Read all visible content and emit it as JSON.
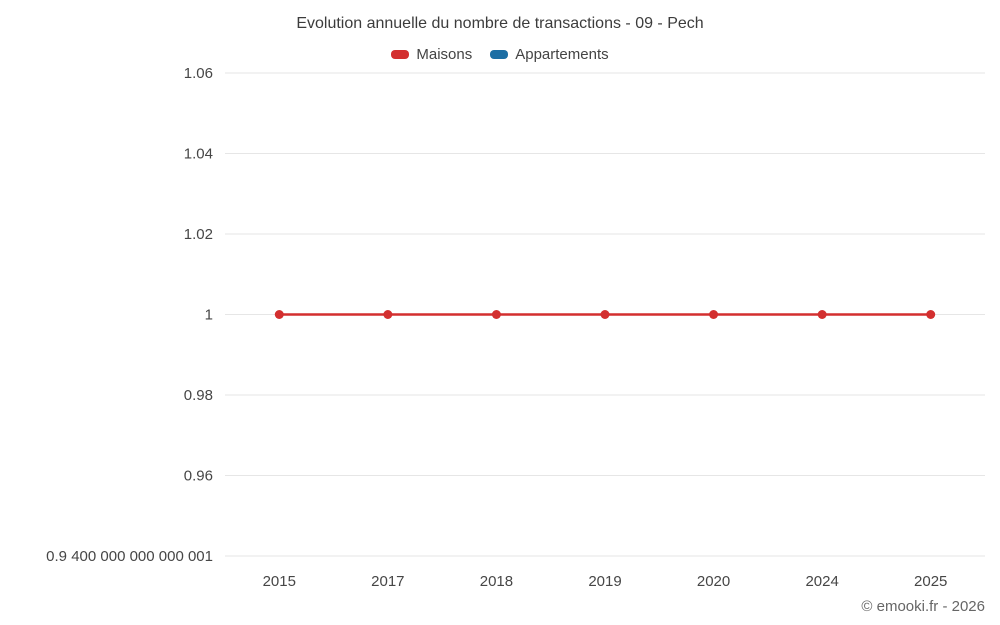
{
  "title": "Evolution annuelle du nombre de transactions - 09 - Pech",
  "footer": "© emooki.fr - 2026",
  "colors": {
    "maisons": "#d32f2f",
    "appartements": "#1c6ea4",
    "gridline": "#e6e6e6",
    "tick_text": "#464646"
  },
  "legend": [
    {
      "label": "Maisons",
      "color": "#d32f2f"
    },
    {
      "label": "Appartements",
      "color": "#1c6ea4"
    }
  ],
  "chart_data": {
    "type": "line",
    "title": "Evolution annuelle du nombre de transactions - 09 - Pech",
    "categories": [
      "2015",
      "2017",
      "2018",
      "2019",
      "2020",
      "2024",
      "2025"
    ],
    "series": [
      {
        "name": "Maisons",
        "color": "#d32f2f",
        "values": [
          1,
          1,
          1,
          1,
          1,
          1,
          1
        ]
      },
      {
        "name": "Appartements",
        "color": "#1c6ea4",
        "values": []
      }
    ],
    "xlabel": "",
    "ylabel": "",
    "ylim": [
      0.9400000000000001,
      1.06
    ],
    "yticks": [
      1.06,
      1.04,
      1.02,
      1,
      0.98,
      0.96,
      0.9400000000000001
    ],
    "ytick_labels": [
      "1.06",
      "1.04",
      "1.02",
      "1",
      "0.98",
      "0.96",
      "0.9 400 000 000 000 001"
    ],
    "grid": true,
    "legend_position": "top"
  }
}
